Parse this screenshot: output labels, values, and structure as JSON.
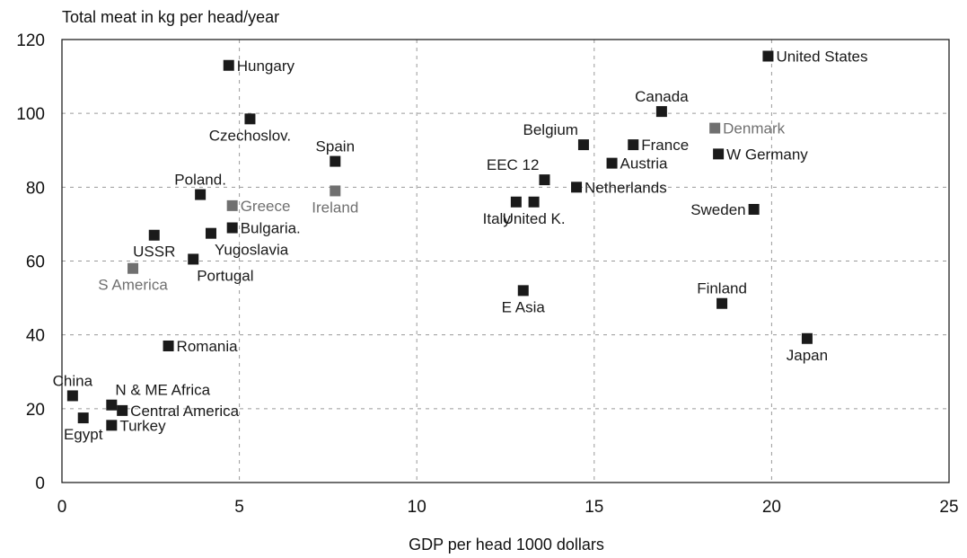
{
  "chart_data": {
    "type": "scatter",
    "ylabel": "Total meat in kg per head/year",
    "xlabel": "GDP per head 1000 dollars",
    "xlim": [
      0,
      25
    ],
    "ylim": [
      0,
      120
    ],
    "x_ticks": [
      "0",
      "5",
      "10",
      "15",
      "20",
      "25"
    ],
    "y_ticks": [
      "0",
      "20",
      "40",
      "60",
      "80",
      "100",
      "120"
    ],
    "grid": true,
    "colors": {
      "dark": "#1a1a1a",
      "gray": "#707070",
      "grid": "#9a9a9a",
      "frame": "#222222"
    },
    "points": [
      {
        "label": "United States",
        "x": 19.9,
        "y": 115.5,
        "shade": "dark",
        "pos": "r"
      },
      {
        "label": "Hungary",
        "x": 4.7,
        "y": 113,
        "shade": "dark",
        "pos": "r"
      },
      {
        "label": "Canada",
        "x": 16.9,
        "y": 100.5,
        "shade": "dark",
        "pos": "t"
      },
      {
        "label": "Czechoslov.",
        "x": 5.3,
        "y": 98.5,
        "shade": "dark",
        "pos": "b"
      },
      {
        "label": "Denmark",
        "x": 18.4,
        "y": 96,
        "shade": "gray",
        "pos": "r"
      },
      {
        "label": "Belgium",
        "x": 14.7,
        "y": 91.5,
        "shade": "dark",
        "pos": "tl"
      },
      {
        "label": "France",
        "x": 16.1,
        "y": 91.5,
        "shade": "dark",
        "pos": "r"
      },
      {
        "label": "W Germany",
        "x": 18.5,
        "y": 89,
        "shade": "dark",
        "pos": "r"
      },
      {
        "label": "Spain",
        "x": 7.7,
        "y": 87,
        "shade": "dark",
        "pos": "t"
      },
      {
        "label": "Austria",
        "x": 15.5,
        "y": 86.5,
        "shade": "dark",
        "pos": "r"
      },
      {
        "label": "EEC 12",
        "x": 13.6,
        "y": 82,
        "shade": "dark",
        "pos": "tl"
      },
      {
        "label": "Netherlands",
        "x": 14.5,
        "y": 80,
        "shade": "dark",
        "pos": "r"
      },
      {
        "label": "Ireland",
        "x": 7.7,
        "y": 79,
        "shade": "gray",
        "pos": "b"
      },
      {
        "label": "Poland.",
        "x": 3.9,
        "y": 78,
        "shade": "dark",
        "pos": "t"
      },
      {
        "label": "Italy",
        "x": 12.8,
        "y": 76,
        "shade": "dark",
        "pos": "bl"
      },
      {
        "label": "United K.",
        "x": 13.3,
        "y": 76,
        "shade": "dark",
        "pos": "b"
      },
      {
        "label": "Greece",
        "x": 4.8,
        "y": 75,
        "shade": "gray",
        "pos": "r"
      },
      {
        "label": "Sweden",
        "x": 19.5,
        "y": 74,
        "shade": "dark",
        "pos": "l"
      },
      {
        "label": "Bulgaria.",
        "x": 4.8,
        "y": 69,
        "shade": "dark",
        "pos": "r"
      },
      {
        "label": "Yugoslavia",
        "x": 4.2,
        "y": 67.5,
        "shade": "dark",
        "pos": "br"
      },
      {
        "label": "USSR",
        "x": 2.6,
        "y": 67,
        "shade": "dark",
        "pos": "b"
      },
      {
        "label": "Portugal",
        "x": 3.7,
        "y": 60.5,
        "shade": "dark",
        "pos": "br"
      },
      {
        "label": "S America",
        "x": 2.0,
        "y": 58,
        "shade": "gray",
        "pos": "b"
      },
      {
        "label": "E Asia",
        "x": 13.0,
        "y": 52,
        "shade": "dark",
        "pos": "b"
      },
      {
        "label": "Finland",
        "x": 18.6,
        "y": 48.5,
        "shade": "dark",
        "pos": "t"
      },
      {
        "label": "Japan",
        "x": 21.0,
        "y": 39,
        "shade": "dark",
        "pos": "b"
      },
      {
        "label": "Romania",
        "x": 3.0,
        "y": 37,
        "shade": "dark",
        "pos": "r"
      },
      {
        "label": "China",
        "x": 0.3,
        "y": 23.5,
        "shade": "dark",
        "pos": "t"
      },
      {
        "label": "N & ME Africa",
        "x": 1.4,
        "y": 21,
        "shade": "dark",
        "pos": "tr"
      },
      {
        "label": "Central America",
        "x": 1.7,
        "y": 19.5,
        "shade": "dark",
        "pos": "r"
      },
      {
        "label": "Egypt",
        "x": 0.6,
        "y": 17.5,
        "shade": "dark",
        "pos": "b"
      },
      {
        "label": "Turkey",
        "x": 1.4,
        "y": 15.5,
        "shade": "dark",
        "pos": "r"
      }
    ]
  }
}
